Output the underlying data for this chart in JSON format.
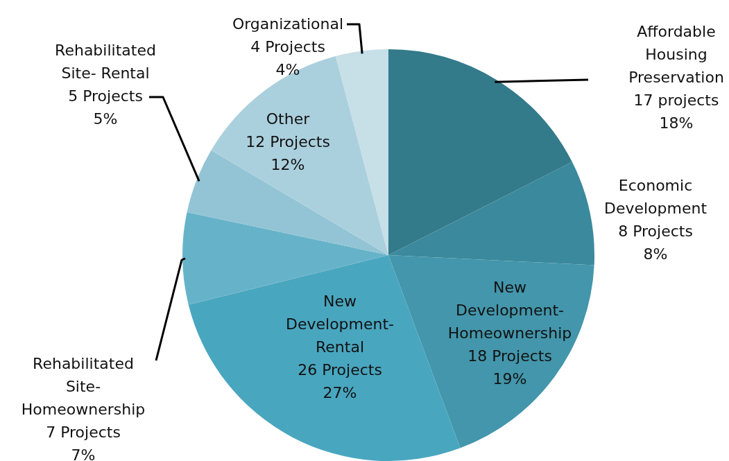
{
  "chart_data": {
    "type": "pie",
    "categories": [
      "Affordable Housing Preservation",
      "Economic Development",
      "New Development-Homeownership",
      "New Development-Rental",
      "Rehabilitated Site-Homeownership",
      "Rehabilitated Site- Rental",
      "Other",
      "Organizational"
    ],
    "values": [
      17,
      8,
      18,
      26,
      7,
      5,
      12,
      4
    ],
    "value_labels": [
      "17 projects\n18%",
      "8 Projects\n8%",
      "18 Projects\n19%",
      "26 Projects\n27%",
      "7 Projects\n7%",
      "5 Projects\n5%",
      "12 Projects\n12%",
      "4 Projects\n4%"
    ],
    "colors": [
      "#337a8b",
      "#3b899c",
      "#4396ab",
      "#49a6bf",
      "#66b3c9",
      "#93c4d5",
      "#abd0dd",
      "#c7dfe7"
    ],
    "legend": false
  }
}
